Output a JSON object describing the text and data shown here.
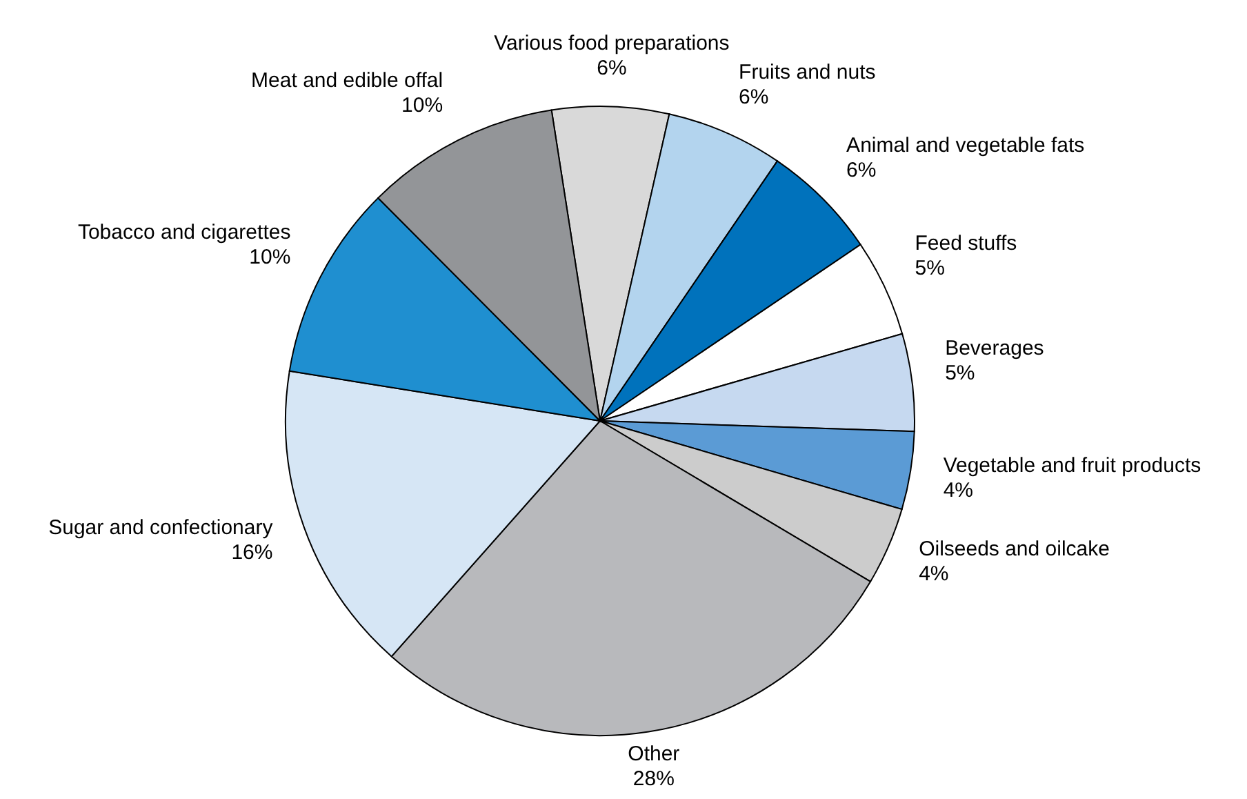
{
  "chart_data": {
    "type": "pie",
    "categories": [
      "Various food preparations",
      "Fruits and nuts",
      "Animal and vegetable fats",
      "Feed stuffs",
      "Beverages",
      "Vegetable and fruit products",
      "Oilseeds and oilcake",
      "Other",
      "Sugar and confectionary",
      "Tobacco and cigarettes",
      "Meat and edible offal"
    ],
    "values": [
      6,
      6,
      6,
      5,
      5,
      4,
      4,
      28,
      16,
      10,
      10
    ],
    "value_labels": [
      "6%",
      "6%",
      "6%",
      "5%",
      "5%",
      "4%",
      "4%",
      "28%",
      "16%",
      "10%",
      "10%"
    ],
    "colors": [
      "#d9d9d9",
      "#b3d4ee",
      "#0072bc",
      "#ffffff",
      "#c6d9f0",
      "#5b9bd5",
      "#cccccc",
      "#b8b9bc",
      "#d6e6f5",
      "#1f8fd0",
      "#939598"
    ]
  }
}
